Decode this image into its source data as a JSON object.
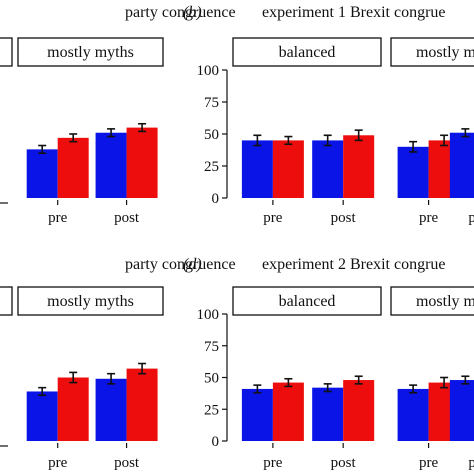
{
  "colors": {
    "series_a": "#0a14e6",
    "series_b": "#ee0d0d",
    "error_bar": "#111111",
    "strip_border": "#111111",
    "axis": "#111111"
  },
  "chart_data": [
    {
      "id": "a",
      "panel_letter": "",
      "title": "party congruence",
      "type": "bar",
      "strips": [
        "",
        "mostly myths"
      ],
      "categories": [
        "pre",
        "post"
      ],
      "ylim": [
        0,
        100
      ],
      "yticks": [],
      "facets": [
        {
          "strip": "",
          "values": []
        },
        {
          "strip": "mostly myths",
          "values": [
            [
              38,
              47
            ],
            [
              51,
              55
            ]
          ],
          "errors": [
            [
              3,
              3
            ],
            [
              3,
              3
            ]
          ]
        }
      ]
    },
    {
      "id": "b",
      "panel_letter": "(b)",
      "title": "experiment 1 Brexit congrue",
      "type": "bar",
      "strips": [
        "balanced",
        "mostly m"
      ],
      "categories": [
        "pre",
        "post"
      ],
      "ylim": [
        0,
        100
      ],
      "yticks": [
        0,
        25,
        50,
        75,
        100
      ],
      "facets": [
        {
          "strip": "balanced",
          "values": [
            [
              45,
              45
            ],
            [
              45,
              49
            ]
          ],
          "errors": [
            [
              4,
              3
            ],
            [
              4,
              4
            ]
          ]
        },
        {
          "strip": "mostly m",
          "values": [
            [
              40,
              45
            ],
            [
              51,
              null
            ]
          ],
          "errors": [
            [
              4,
              4
            ],
            [
              3,
              null
            ]
          ]
        }
      ]
    },
    {
      "id": "c",
      "panel_letter": "",
      "title": "party congruence",
      "type": "bar",
      "strips": [
        "",
        "mostly myths"
      ],
      "categories": [
        "pre",
        "post"
      ],
      "ylim": [
        0,
        100
      ],
      "yticks": [],
      "facets": [
        {
          "strip": "",
          "values": []
        },
        {
          "strip": "mostly myths",
          "values": [
            [
              39,
              50
            ],
            [
              49,
              57
            ]
          ],
          "errors": [
            [
              3,
              4
            ],
            [
              4,
              4
            ]
          ]
        }
      ]
    },
    {
      "id": "d",
      "panel_letter": "(d)",
      "title": "experiment 2 Brexit congrue",
      "type": "bar",
      "strips": [
        "balanced",
        "mostly m"
      ],
      "categories": [
        "pre",
        "post"
      ],
      "ylim": [
        0,
        100
      ],
      "yticks": [
        0,
        25,
        50,
        75,
        100
      ],
      "facets": [
        {
          "strip": "balanced",
          "values": [
            [
              41,
              46
            ],
            [
              42,
              48
            ]
          ],
          "errors": [
            [
              3,
              3
            ],
            [
              3,
              3
            ]
          ]
        },
        {
          "strip": "mostly m",
          "values": [
            [
              41,
              46
            ],
            [
              48,
              null
            ]
          ],
          "errors": [
            [
              3,
              4
            ],
            [
              3,
              null
            ]
          ]
        }
      ]
    }
  ]
}
